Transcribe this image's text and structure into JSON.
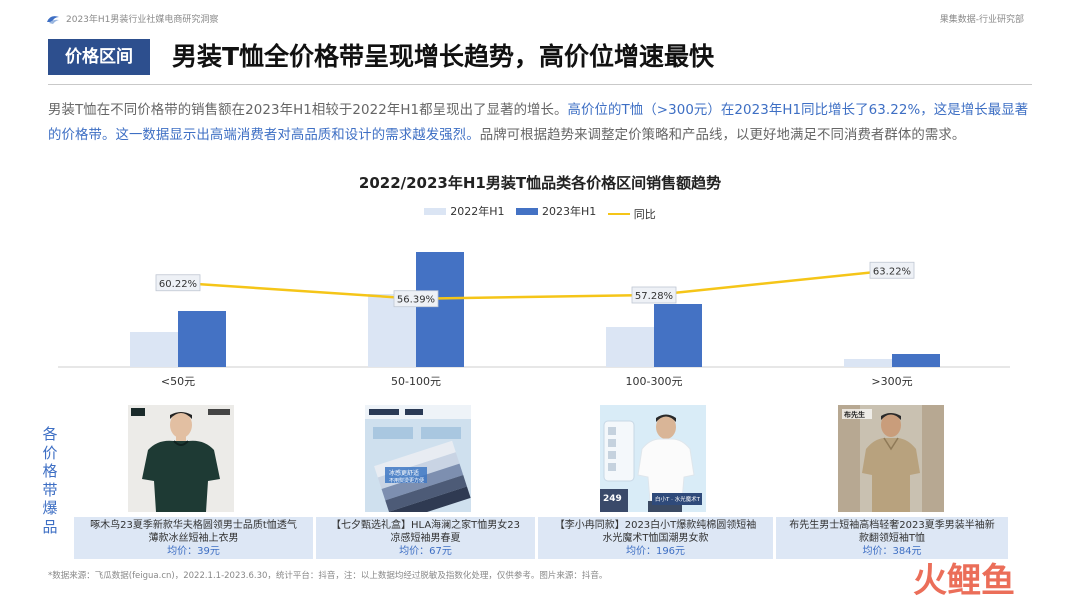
{
  "header": {
    "report_title": "2023年H1男装行业社媒电商研究洞察",
    "department": "果集数据-行业研究部"
  },
  "section": {
    "tag": "价格区间",
    "headline": "男装T恤全价格带呈现增长趋势，高价位增速最快"
  },
  "description": {
    "part1": "男装T恤在不同价格带的销售额在2023年H1相较于2022年H1都呈现出了显著的增长。",
    "part2": "高价位的T恤（>300元）在2023年H1同比增长了63.22%，这是增长最显著的价格带。这一数据显示出高端消费者对高品质和设计的需求越发强烈。",
    "part3": "品牌可根据趋势来调整定价策略和产品线，以更好地满足不同消费者群体的需求。"
  },
  "chart_data": {
    "type": "bar",
    "title": "2022/2023年H1男装T恤品类各价格区间销售额趋势",
    "categories": [
      "<50元",
      "50-100元",
      "100-300元",
      ">300元"
    ],
    "series": [
      {
        "name": "2022年H1",
        "type": "bar",
        "color": "#dbe5f4",
        "values": [
          35,
          73,
          40,
          8
        ]
      },
      {
        "name": "2023年H1",
        "type": "bar",
        "color": "#4472c4",
        "values": [
          56,
          115,
          63,
          13
        ]
      },
      {
        "name": "同比",
        "type": "line",
        "color": "#f5c518",
        "values": [
          60.22,
          56.39,
          57.28,
          63.22
        ],
        "labels": [
          "60.22%",
          "56.39%",
          "57.28%",
          "63.22%"
        ]
      }
    ],
    "ylim_bar": [
      0,
      125
    ],
    "ylim_line": [
      40,
      70
    ],
    "legend_position": "top-center",
    "grid": false
  },
  "products": {
    "side_label": "各价格带爆品",
    "items": [
      {
        "name": "啄木鸟23夏季新款华夫格圆领男士品质t恤透气薄款冰丝短袖上衣男",
        "price": "均价：39元",
        "image": "dark-green-tshirt-photo"
      },
      {
        "name": "【七夕甄选礼盒】HLA海澜之家T恤男女23凉感短袖男春夏",
        "price": "均价：67元",
        "image": "folded-tshirts-giftbox-photo",
        "image_text": "冰感更舒适 不用熨烫更方便"
      },
      {
        "name": "【李小冉同款】2023白小T爆款纯棉圆领短袖水光魔术T恤国潮男女款",
        "price": "均价：196元",
        "image": "white-tshirt-model-photo",
        "image_text": "白小T · 水光魔术T",
        "image_price": "249"
      },
      {
        "name": "布先生男士短袖高档轻奢2023夏季男装半袖新款翻领短袖T恤",
        "price": "均价：384元",
        "image": "beige-polo-model-photo",
        "image_text": "布先生"
      }
    ]
  },
  "footnote": "*数据来源：飞瓜数据(feigua.cn)，2022.1.1-2023.6.30，统计平台：抖音，注：以上数据均经过脱敏及指数化处理，仅供参考。图片来源：抖音。",
  "watermark": "火鲤鱼"
}
